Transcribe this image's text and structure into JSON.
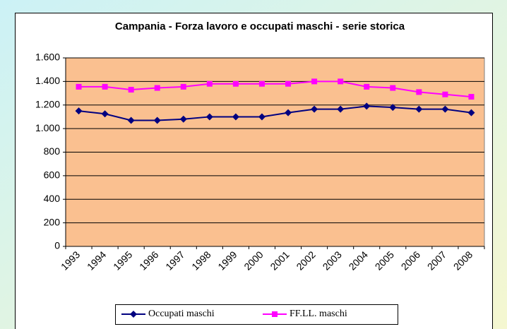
{
  "chart_data": {
    "type": "line",
    "title": "Campania - Forza lavoro e occupati maschi - serie storica",
    "categories": [
      "1993",
      "1994",
      "1995",
      "1996",
      "1997",
      "1998",
      "1999",
      "2000",
      "2001",
      "2002",
      "2003",
      "2004",
      "2005",
      "2006",
      "2007",
      "2008"
    ],
    "series": [
      {
        "name": "Occupati maschi",
        "color": "#000080",
        "marker": "diamond",
        "values": [
          1150,
          1125,
          1070,
          1070,
          1080,
          1100,
          1100,
          1100,
          1135,
          1165,
          1165,
          1190,
          1180,
          1165,
          1165,
          1135
        ]
      },
      {
        "name": "FF.LL. maschi",
        "color": "#ff00ff",
        "marker": "square",
        "values": [
          1355,
          1355,
          1330,
          1345,
          1355,
          1380,
          1380,
          1380,
          1380,
          1400,
          1400,
          1355,
          1345,
          1310,
          1290,
          1270
        ]
      }
    ],
    "ylim": [
      0,
      1600
    ],
    "yticks": [
      0,
      200,
      400,
      600,
      800,
      {
        "value": 1000,
        "label": "1.000"
      },
      {
        "value": 1200,
        "label": "1.200"
      },
      {
        "value": 1400,
        "label": "1.400"
      },
      {
        "value": 1600,
        "label": "1.600"
      }
    ],
    "grid": true,
    "plot_background": "#fac090",
    "legend": "bottom"
  }
}
